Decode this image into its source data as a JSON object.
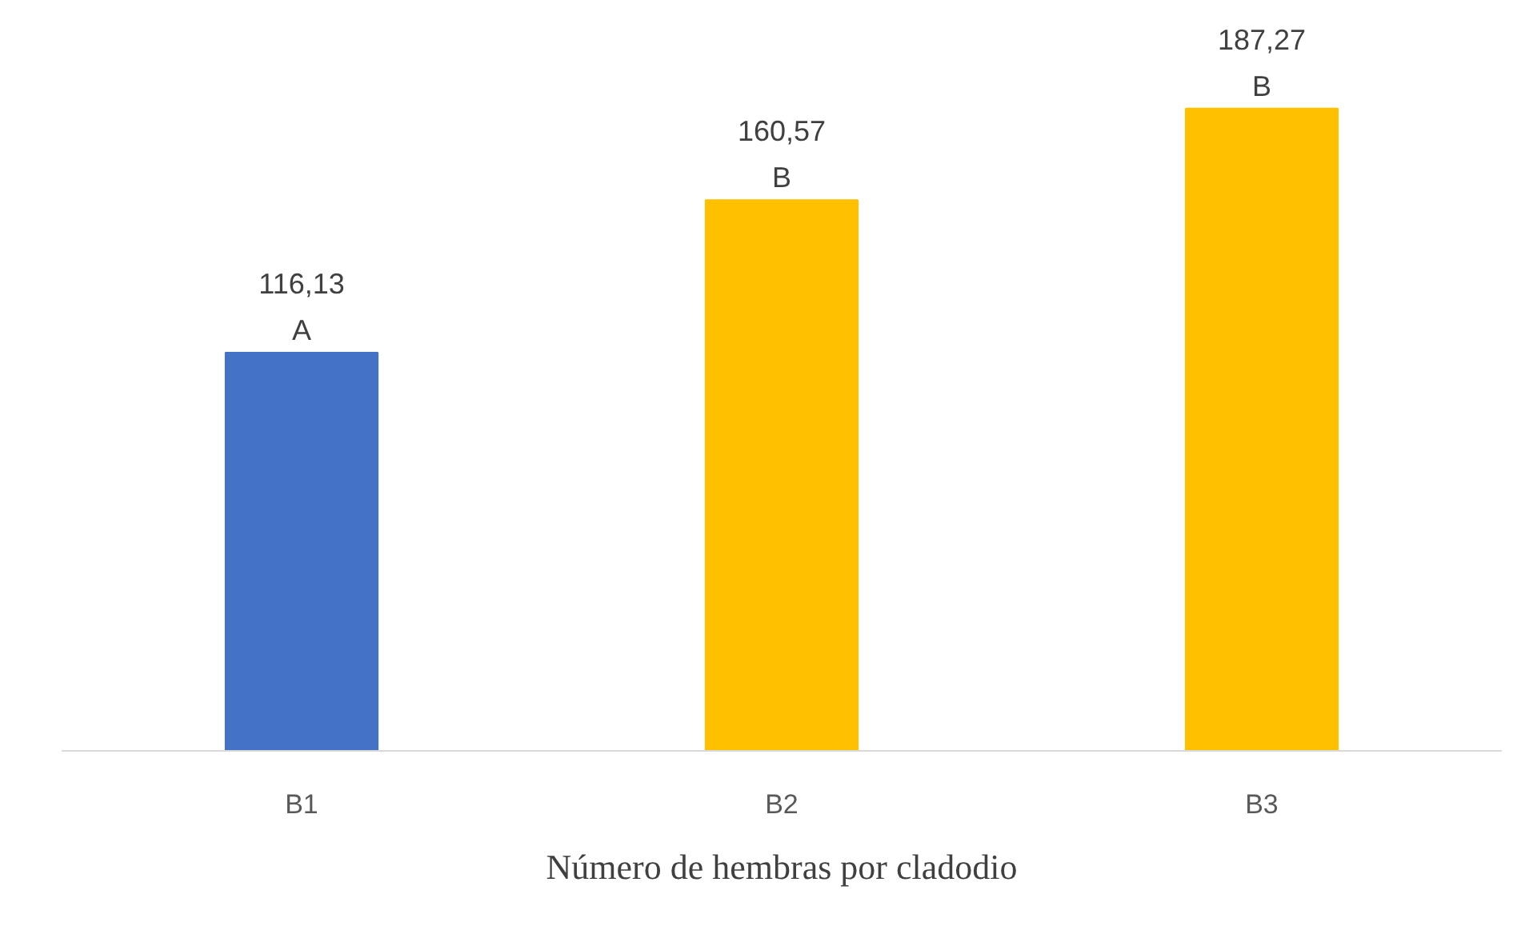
{
  "chart_data": {
    "type": "bar",
    "xlabel": "Número de hembras por cladodio",
    "categories": [
      "B1",
      "B2",
      "B3"
    ],
    "values": [
      116.13,
      160.57,
      187.27
    ],
    "colors": [
      "#4472c4",
      "#ffc000",
      "#ffc000"
    ],
    "value_labels": [
      "116,13\nA",
      "160,57\nB",
      "187,27\nB"
    ],
    "grid": false
  }
}
